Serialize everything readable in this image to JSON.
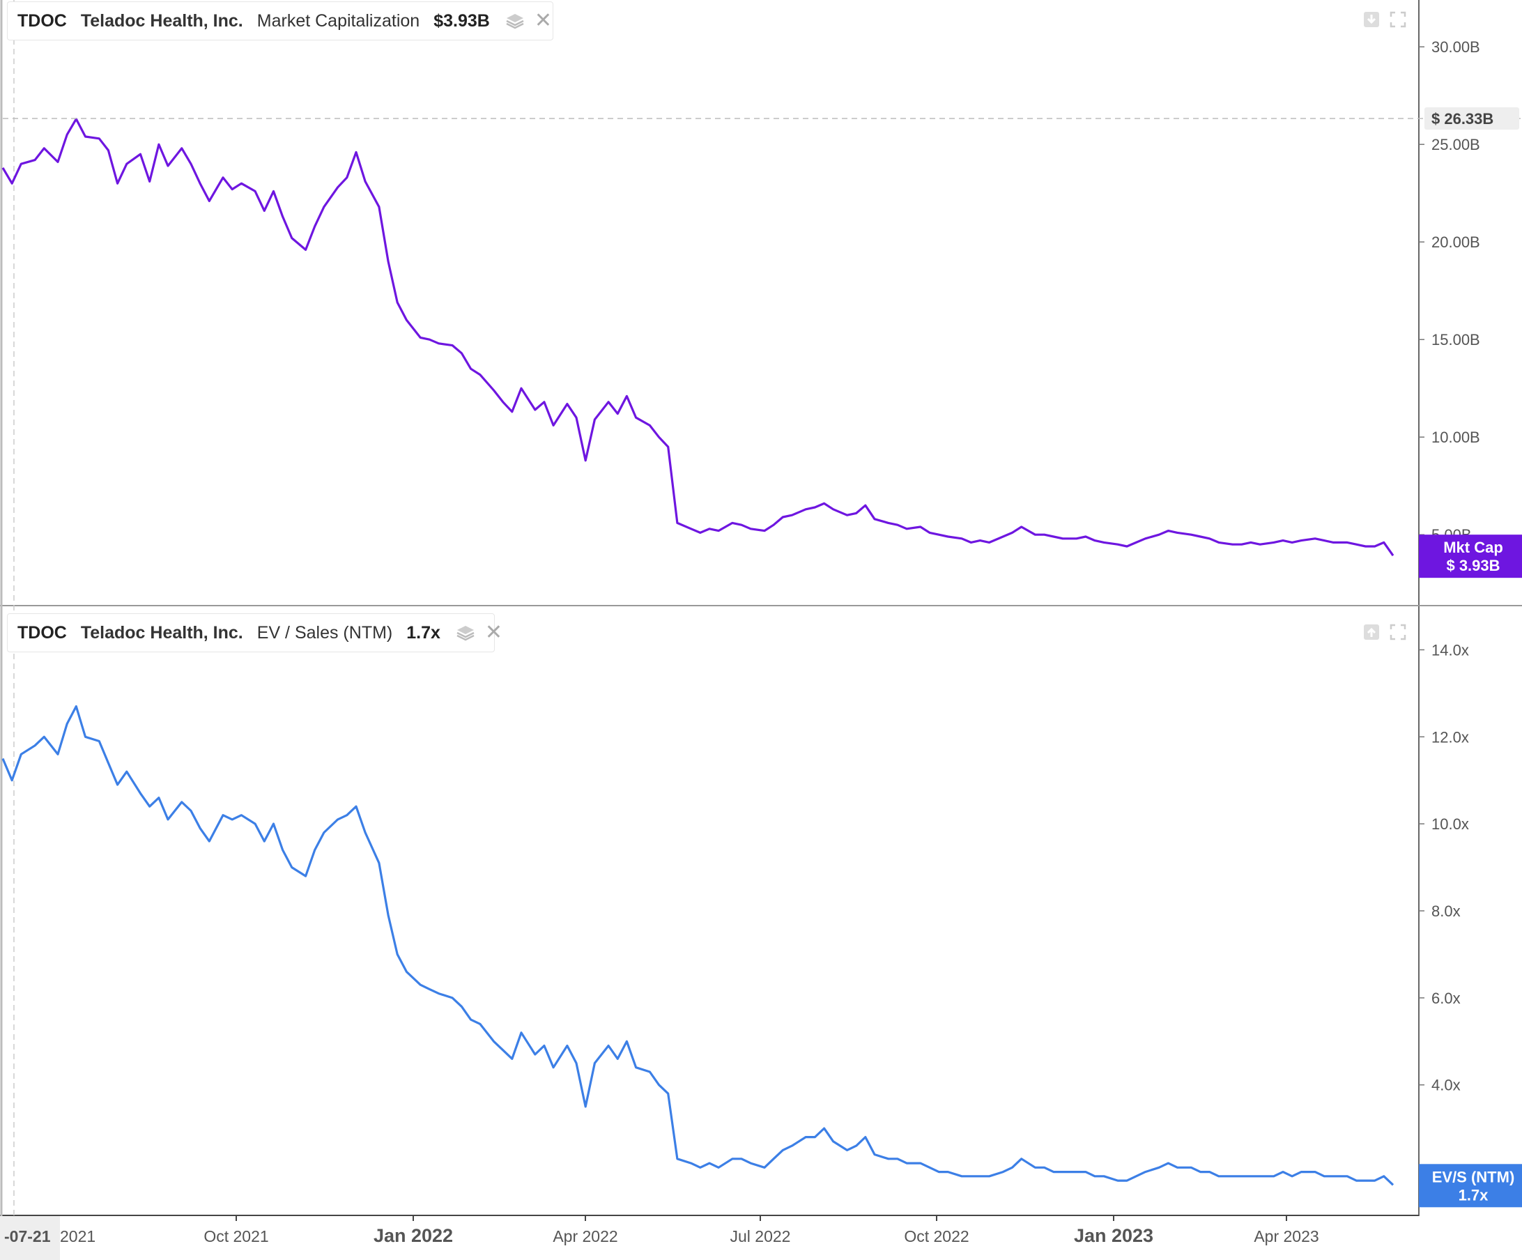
{
  "colors": {
    "mktcap": "#6e16e0",
    "evs": "#3c7fe6",
    "axis": "#555555",
    "grid_crosshair": "#bbbbbb"
  },
  "legend_top": {
    "ticker": "TDOC",
    "company": "Teladoc Health, Inc.",
    "metric": "Market Capitalization",
    "value": "$3.93B"
  },
  "legend_bottom": {
    "ticker": "TDOC",
    "company": "Teladoc Health, Inc.",
    "metric": "EV / Sales (NTM)",
    "value": "1.7x"
  },
  "icons": {
    "layers": "layers-icon",
    "close": "close-icon",
    "download": "download-icon",
    "expand": "expand-icon",
    "upload": "upload-icon"
  },
  "chart_data": [
    {
      "type": "line",
      "title": "",
      "series": [
        {
          "name": "Market Capitalization",
          "unit": "B USD"
        }
      ],
      "y_ticks": [
        "30.00B",
        "25.00B",
        "20.00B",
        "15.00B",
        "10.00B",
        "5.00B"
      ],
      "y_tick_values": [
        30,
        25,
        20,
        15,
        10,
        5
      ],
      "ylim": [
        1.4,
        32.4
      ],
      "crosshair_label": "$ 26.33B",
      "crosshair_value": 26.33,
      "end_label": {
        "title": "Mkt Cap",
        "value": "$ 3.93B"
      },
      "points": [
        [
          0,
          23.8
        ],
        [
          2,
          23.0
        ],
        [
          4,
          24.0
        ],
        [
          7,
          24.2
        ],
        [
          9,
          24.8
        ],
        [
          12,
          24.1
        ],
        [
          14,
          25.5
        ],
        [
          16,
          26.3
        ],
        [
          18,
          25.4
        ],
        [
          21,
          25.3
        ],
        [
          23,
          24.7
        ],
        [
          25,
          23.0
        ],
        [
          27,
          24.0
        ],
        [
          30,
          24.5
        ],
        [
          32,
          23.1
        ],
        [
          34,
          25.0
        ],
        [
          36,
          23.9
        ],
        [
          39,
          24.8
        ],
        [
          41,
          24.0
        ],
        [
          43,
          23.0
        ],
        [
          45,
          22.1
        ],
        [
          48,
          23.3
        ],
        [
          50,
          22.7
        ],
        [
          52,
          23.0
        ],
        [
          55,
          22.6
        ],
        [
          57,
          21.6
        ],
        [
          59,
          22.6
        ],
        [
          61,
          21.3
        ],
        [
          63,
          20.2
        ],
        [
          66,
          19.6
        ],
        [
          68,
          20.8
        ],
        [
          70,
          21.8
        ],
        [
          73,
          22.8
        ],
        [
          75,
          23.3
        ],
        [
          77,
          24.6
        ],
        [
          79,
          23.1
        ],
        [
          82,
          21.8
        ],
        [
          84,
          19.0
        ],
        [
          86,
          16.9
        ],
        [
          88,
          16.0
        ],
        [
          91,
          15.1
        ],
        [
          93,
          15.0
        ],
        [
          95,
          14.8
        ],
        [
          98,
          14.7
        ],
        [
          100,
          14.3
        ],
        [
          102,
          13.5
        ],
        [
          104,
          13.2
        ],
        [
          107,
          12.4
        ],
        [
          109,
          11.8
        ],
        [
          111,
          11.3
        ],
        [
          113,
          12.5
        ],
        [
          116,
          11.4
        ],
        [
          118,
          11.8
        ],
        [
          120,
          10.6
        ],
        [
          123,
          11.7
        ],
        [
          125,
          11.0
        ],
        [
          127,
          8.8
        ],
        [
          129,
          10.9
        ],
        [
          132,
          11.8
        ],
        [
          134,
          11.2
        ],
        [
          136,
          12.1
        ],
        [
          138,
          11.0
        ],
        [
          141,
          10.6
        ],
        [
          143,
          10.0
        ],
        [
          145,
          9.5
        ],
        [
          147,
          5.6
        ],
        [
          150,
          5.3
        ],
        [
          152,
          5.1
        ],
        [
          154,
          5.3
        ],
        [
          156,
          5.2
        ],
        [
          159,
          5.6
        ],
        [
          161,
          5.5
        ],
        [
          163,
          5.3
        ],
        [
          166,
          5.2
        ],
        [
          168,
          5.5
        ],
        [
          170,
          5.9
        ],
        [
          172,
          6.0
        ],
        [
          175,
          6.3
        ],
        [
          177,
          6.4
        ],
        [
          179,
          6.6
        ],
        [
          181,
          6.3
        ],
        [
          184,
          6.0
        ],
        [
          186,
          6.1
        ],
        [
          188,
          6.5
        ],
        [
          190,
          5.8
        ],
        [
          193,
          5.6
        ],
        [
          195,
          5.5
        ],
        [
          197,
          5.3
        ],
        [
          200,
          5.4
        ],
        [
          202,
          5.1
        ],
        [
          204,
          5.0
        ],
        [
          206,
          4.9
        ],
        [
          209,
          4.8
        ],
        [
          211,
          4.6
        ],
        [
          213,
          4.7
        ],
        [
          215,
          4.6
        ],
        [
          218,
          4.9
        ],
        [
          220,
          5.1
        ],
        [
          222,
          5.4
        ],
        [
          225,
          5.0
        ],
        [
          227,
          5.0
        ],
        [
          229,
          4.9
        ],
        [
          231,
          4.8
        ],
        [
          234,
          4.8
        ],
        [
          236,
          4.9
        ],
        [
          238,
          4.7
        ],
        [
          240,
          4.6
        ],
        [
          243,
          4.5
        ],
        [
          245,
          4.4
        ],
        [
          247,
          4.6
        ],
        [
          249,
          4.8
        ],
        [
          252,
          5.0
        ],
        [
          254,
          5.2
        ],
        [
          256,
          5.1
        ],
        [
          259,
          5.0
        ],
        [
          261,
          4.9
        ],
        [
          263,
          4.8
        ],
        [
          265,
          4.6
        ],
        [
          268,
          4.5
        ],
        [
          270,
          4.5
        ],
        [
          272,
          4.6
        ],
        [
          274,
          4.5
        ],
        [
          277,
          4.6
        ],
        [
          279,
          4.7
        ],
        [
          281,
          4.6
        ],
        [
          283,
          4.7
        ],
        [
          286,
          4.8
        ],
        [
          288,
          4.7
        ],
        [
          290,
          4.6
        ],
        [
          293,
          4.6
        ],
        [
          295,
          4.5
        ],
        [
          297,
          4.4
        ],
        [
          299,
          4.4
        ],
        [
          301,
          4.6
        ],
        [
          303,
          3.93
        ]
      ],
      "x_ticks": [
        [
          "Oct 2021",
          56
        ],
        [
          "Jan 2022",
          98
        ],
        [
          "Apr 2022",
          139
        ],
        [
          "Jul 2022",
          181
        ],
        [
          "Oct 2022",
          223
        ],
        [
          "Jan 2023",
          265
        ],
        [
          "Apr 2023",
          306
        ]
      ]
    },
    {
      "type": "line",
      "title": "",
      "series": [
        {
          "name": "EV / Sales (NTM)",
          "unit": "x"
        }
      ],
      "y_ticks": [
        "14.0x",
        "12.0x",
        "10.0x",
        "8.0x",
        "6.0x",
        "4.0x"
      ],
      "y_tick_values": [
        14,
        12,
        10,
        8,
        6,
        4
      ],
      "ylim": [
        1.0,
        15.0
      ],
      "end_label": {
        "title": "EV/S (NTM)",
        "value": "1.7x"
      },
      "points": [
        [
          0,
          11.5
        ],
        [
          2,
          11.0
        ],
        [
          4,
          11.6
        ],
        [
          7,
          11.8
        ],
        [
          9,
          12.0
        ],
        [
          12,
          11.6
        ],
        [
          14,
          12.3
        ],
        [
          16,
          12.7
        ],
        [
          18,
          12.0
        ],
        [
          21,
          11.9
        ],
        [
          23,
          11.4
        ],
        [
          25,
          10.9
        ],
        [
          27,
          11.2
        ],
        [
          30,
          10.7
        ],
        [
          32,
          10.4
        ],
        [
          34,
          10.6
        ],
        [
          36,
          10.1
        ],
        [
          39,
          10.5
        ],
        [
          41,
          10.3
        ],
        [
          43,
          9.9
        ],
        [
          45,
          9.6
        ],
        [
          48,
          10.2
        ],
        [
          50,
          10.1
        ],
        [
          52,
          10.2
        ],
        [
          55,
          10.0
        ],
        [
          57,
          9.6
        ],
        [
          59,
          10.0
        ],
        [
          61,
          9.4
        ],
        [
          63,
          9.0
        ],
        [
          66,
          8.8
        ],
        [
          68,
          9.4
        ],
        [
          70,
          9.8
        ],
        [
          73,
          10.1
        ],
        [
          75,
          10.2
        ],
        [
          77,
          10.4
        ],
        [
          79,
          9.8
        ],
        [
          82,
          9.1
        ],
        [
          84,
          7.9
        ],
        [
          86,
          7.0
        ],
        [
          88,
          6.6
        ],
        [
          91,
          6.3
        ],
        [
          93,
          6.2
        ],
        [
          95,
          6.1
        ],
        [
          98,
          6.0
        ],
        [
          100,
          5.8
        ],
        [
          102,
          5.5
        ],
        [
          104,
          5.4
        ],
        [
          107,
          5.0
        ],
        [
          109,
          4.8
        ],
        [
          111,
          4.6
        ],
        [
          113,
          5.2
        ],
        [
          116,
          4.7
        ],
        [
          118,
          4.9
        ],
        [
          120,
          4.4
        ],
        [
          123,
          4.9
        ],
        [
          125,
          4.5
        ],
        [
          127,
          3.5
        ],
        [
          129,
          4.5
        ],
        [
          132,
          4.9
        ],
        [
          134,
          4.6
        ],
        [
          136,
          5.0
        ],
        [
          138,
          4.4
        ],
        [
          141,
          4.3
        ],
        [
          143,
          4.0
        ],
        [
          145,
          3.8
        ],
        [
          147,
          2.3
        ],
        [
          150,
          2.2
        ],
        [
          152,
          2.1
        ],
        [
          154,
          2.2
        ],
        [
          156,
          2.1
        ],
        [
          159,
          2.3
        ],
        [
          161,
          2.3
        ],
        [
          163,
          2.2
        ],
        [
          166,
          2.1
        ],
        [
          168,
          2.3
        ],
        [
          170,
          2.5
        ],
        [
          172,
          2.6
        ],
        [
          175,
          2.8
        ],
        [
          177,
          2.8
        ],
        [
          179,
          3.0
        ],
        [
          181,
          2.7
        ],
        [
          184,
          2.5
        ],
        [
          186,
          2.6
        ],
        [
          188,
          2.8
        ],
        [
          190,
          2.4
        ],
        [
          193,
          2.3
        ],
        [
          195,
          2.3
        ],
        [
          197,
          2.2
        ],
        [
          200,
          2.2
        ],
        [
          202,
          2.1
        ],
        [
          204,
          2.0
        ],
        [
          206,
          2.0
        ],
        [
          209,
          1.9
        ],
        [
          211,
          1.9
        ],
        [
          213,
          1.9
        ],
        [
          215,
          1.9
        ],
        [
          218,
          2.0
        ],
        [
          220,
          2.1
        ],
        [
          222,
          2.3
        ],
        [
          225,
          2.1
        ],
        [
          227,
          2.1
        ],
        [
          229,
          2.0
        ],
        [
          231,
          2.0
        ],
        [
          234,
          2.0
        ],
        [
          236,
          2.0
        ],
        [
          238,
          1.9
        ],
        [
          240,
          1.9
        ],
        [
          243,
          1.8
        ],
        [
          245,
          1.8
        ],
        [
          247,
          1.9
        ],
        [
          249,
          2.0
        ],
        [
          252,
          2.1
        ],
        [
          254,
          2.2
        ],
        [
          256,
          2.1
        ],
        [
          259,
          2.1
        ],
        [
          261,
          2.0
        ],
        [
          263,
          2.0
        ],
        [
          265,
          1.9
        ],
        [
          268,
          1.9
        ],
        [
          270,
          1.9
        ],
        [
          272,
          1.9
        ],
        [
          274,
          1.9
        ],
        [
          277,
          1.9
        ],
        [
          279,
          2.0
        ],
        [
          281,
          1.9
        ],
        [
          283,
          2.0
        ],
        [
          286,
          2.0
        ],
        [
          288,
          1.9
        ],
        [
          290,
          1.9
        ],
        [
          293,
          1.9
        ],
        [
          295,
          1.8
        ],
        [
          297,
          1.8
        ],
        [
          299,
          1.8
        ],
        [
          301,
          1.9
        ],
        [
          303,
          1.7
        ]
      ],
      "x_ticks": [
        [
          "Oct 2021",
          56
        ],
        [
          "Jan 2022",
          98
        ],
        [
          "Apr 2022",
          139
        ],
        [
          "Jul 2022",
          181
        ],
        [
          "Oct 2022",
          223
        ],
        [
          "Jan 2023",
          265
        ],
        [
          "Apr 2023",
          306
        ]
      ]
    }
  ],
  "x_axis": {
    "first_label": "-07-21",
    "partial_label": "2021",
    "ticks": [
      {
        "label": "Oct 2021",
        "bold": false
      },
      {
        "label": "Jan 2022",
        "bold": true
      },
      {
        "label": "Apr 2022",
        "bold": false
      },
      {
        "label": "Jul 2022",
        "bold": false
      },
      {
        "label": "Oct 2022",
        "bold": false
      },
      {
        "label": "Jan 2023",
        "bold": true
      },
      {
        "label": "Apr 2023",
        "bold": false
      }
    ]
  }
}
